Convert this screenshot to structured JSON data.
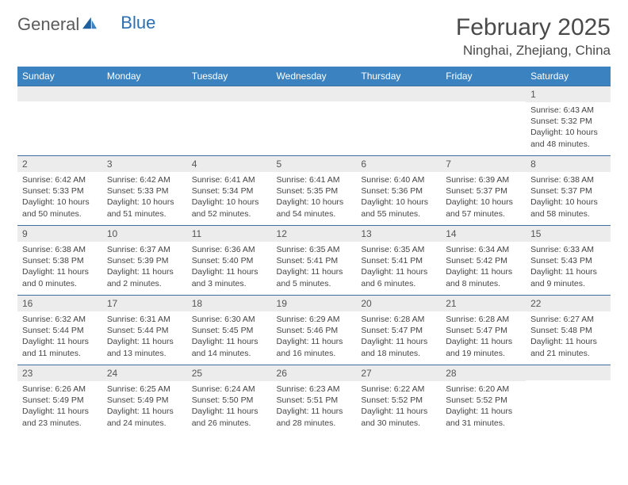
{
  "logo": {
    "text1": "General",
    "text2": "Blue"
  },
  "title": "February 2025",
  "location": "Ninghai, Zhejiang, China",
  "colors": {
    "header_bg": "#3b83c0",
    "header_text": "#ffffff",
    "daynum_bg": "#ececec",
    "border": "#3b6fa0",
    "logo_gray": "#5a5a5a",
    "logo_blue": "#2f6fb0"
  },
  "weekdays": [
    "Sunday",
    "Monday",
    "Tuesday",
    "Wednesday",
    "Thursday",
    "Friday",
    "Saturday"
  ],
  "weeks": [
    [
      null,
      null,
      null,
      null,
      null,
      null,
      {
        "n": "1",
        "sunrise": "6:43 AM",
        "sunset": "5:32 PM",
        "daylight": "10 hours and 48 minutes."
      }
    ],
    [
      {
        "n": "2",
        "sunrise": "6:42 AM",
        "sunset": "5:33 PM",
        "daylight": "10 hours and 50 minutes."
      },
      {
        "n": "3",
        "sunrise": "6:42 AM",
        "sunset": "5:33 PM",
        "daylight": "10 hours and 51 minutes."
      },
      {
        "n": "4",
        "sunrise": "6:41 AM",
        "sunset": "5:34 PM",
        "daylight": "10 hours and 52 minutes."
      },
      {
        "n": "5",
        "sunrise": "6:41 AM",
        "sunset": "5:35 PM",
        "daylight": "10 hours and 54 minutes."
      },
      {
        "n": "6",
        "sunrise": "6:40 AM",
        "sunset": "5:36 PM",
        "daylight": "10 hours and 55 minutes."
      },
      {
        "n": "7",
        "sunrise": "6:39 AM",
        "sunset": "5:37 PM",
        "daylight": "10 hours and 57 minutes."
      },
      {
        "n": "8",
        "sunrise": "6:38 AM",
        "sunset": "5:37 PM",
        "daylight": "10 hours and 58 minutes."
      }
    ],
    [
      {
        "n": "9",
        "sunrise": "6:38 AM",
        "sunset": "5:38 PM",
        "daylight": "11 hours and 0 minutes."
      },
      {
        "n": "10",
        "sunrise": "6:37 AM",
        "sunset": "5:39 PM",
        "daylight": "11 hours and 2 minutes."
      },
      {
        "n": "11",
        "sunrise": "6:36 AM",
        "sunset": "5:40 PM",
        "daylight": "11 hours and 3 minutes."
      },
      {
        "n": "12",
        "sunrise": "6:35 AM",
        "sunset": "5:41 PM",
        "daylight": "11 hours and 5 minutes."
      },
      {
        "n": "13",
        "sunrise": "6:35 AM",
        "sunset": "5:41 PM",
        "daylight": "11 hours and 6 minutes."
      },
      {
        "n": "14",
        "sunrise": "6:34 AM",
        "sunset": "5:42 PM",
        "daylight": "11 hours and 8 minutes."
      },
      {
        "n": "15",
        "sunrise": "6:33 AM",
        "sunset": "5:43 PM",
        "daylight": "11 hours and 9 minutes."
      }
    ],
    [
      {
        "n": "16",
        "sunrise": "6:32 AM",
        "sunset": "5:44 PM",
        "daylight": "11 hours and 11 minutes."
      },
      {
        "n": "17",
        "sunrise": "6:31 AM",
        "sunset": "5:44 PM",
        "daylight": "11 hours and 13 minutes."
      },
      {
        "n": "18",
        "sunrise": "6:30 AM",
        "sunset": "5:45 PM",
        "daylight": "11 hours and 14 minutes."
      },
      {
        "n": "19",
        "sunrise": "6:29 AM",
        "sunset": "5:46 PM",
        "daylight": "11 hours and 16 minutes."
      },
      {
        "n": "20",
        "sunrise": "6:28 AM",
        "sunset": "5:47 PM",
        "daylight": "11 hours and 18 minutes."
      },
      {
        "n": "21",
        "sunrise": "6:28 AM",
        "sunset": "5:47 PM",
        "daylight": "11 hours and 19 minutes."
      },
      {
        "n": "22",
        "sunrise": "6:27 AM",
        "sunset": "5:48 PM",
        "daylight": "11 hours and 21 minutes."
      }
    ],
    [
      {
        "n": "23",
        "sunrise": "6:26 AM",
        "sunset": "5:49 PM",
        "daylight": "11 hours and 23 minutes."
      },
      {
        "n": "24",
        "sunrise": "6:25 AM",
        "sunset": "5:49 PM",
        "daylight": "11 hours and 24 minutes."
      },
      {
        "n": "25",
        "sunrise": "6:24 AM",
        "sunset": "5:50 PM",
        "daylight": "11 hours and 26 minutes."
      },
      {
        "n": "26",
        "sunrise": "6:23 AM",
        "sunset": "5:51 PM",
        "daylight": "11 hours and 28 minutes."
      },
      {
        "n": "27",
        "sunrise": "6:22 AM",
        "sunset": "5:52 PM",
        "daylight": "11 hours and 30 minutes."
      },
      {
        "n": "28",
        "sunrise": "6:20 AM",
        "sunset": "5:52 PM",
        "daylight": "11 hours and 31 minutes."
      },
      null
    ]
  ],
  "labels": {
    "sunrise": "Sunrise:",
    "sunset": "Sunset:",
    "daylight": "Daylight:"
  }
}
